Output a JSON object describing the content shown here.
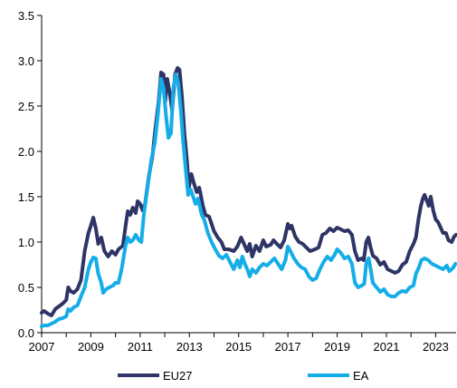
{
  "chart_data": {
    "type": "line",
    "title": "",
    "xlabel": "",
    "ylabel": "",
    "xlim": [
      2007,
      2023.83
    ],
    "ylim": [
      0,
      3.5
    ],
    "x_ticks": [
      "2007",
      "2009",
      "2011",
      "2013",
      "2015",
      "2017",
      "2019",
      "2021",
      "2023"
    ],
    "y_ticks": [
      "0.0",
      "0.5",
      "1.0",
      "1.5",
      "2.0",
      "2.5",
      "3.0",
      "3.5"
    ],
    "grid": false,
    "legend_position": "bottom",
    "series": [
      {
        "name": "EU27",
        "color": "#2E3466",
        "points": [
          [
            2007.0,
            0.22
          ],
          [
            2007.1,
            0.24
          ],
          [
            2007.25,
            0.21
          ],
          [
            2007.4,
            0.19
          ],
          [
            2007.55,
            0.26
          ],
          [
            2007.7,
            0.29
          ],
          [
            2007.85,
            0.32
          ],
          [
            2008.0,
            0.36
          ],
          [
            2008.08,
            0.5
          ],
          [
            2008.17,
            0.46
          ],
          [
            2008.3,
            0.44
          ],
          [
            2008.45,
            0.48
          ],
          [
            2008.6,
            0.58
          ],
          [
            2008.75,
            0.9
          ],
          [
            2008.9,
            1.1
          ],
          [
            2009.0,
            1.18
          ],
          [
            2009.1,
            1.27
          ],
          [
            2009.2,
            1.15
          ],
          [
            2009.3,
            0.98
          ],
          [
            2009.42,
            1.05
          ],
          [
            2009.55,
            0.9
          ],
          [
            2009.7,
            0.84
          ],
          [
            2009.85,
            0.9
          ],
          [
            2010.0,
            0.86
          ],
          [
            2010.12,
            0.92
          ],
          [
            2010.3,
            0.96
          ],
          [
            2010.42,
            1.2
          ],
          [
            2010.5,
            1.34
          ],
          [
            2010.6,
            1.3
          ],
          [
            2010.7,
            1.38
          ],
          [
            2010.82,
            1.32
          ],
          [
            2010.9,
            1.45
          ],
          [
            2011.0,
            1.42
          ],
          [
            2011.1,
            1.35
          ],
          [
            2011.2,
            1.42
          ],
          [
            2011.35,
            1.72
          ],
          [
            2011.5,
            1.95
          ],
          [
            2011.62,
            2.25
          ],
          [
            2011.75,
            2.55
          ],
          [
            2011.85,
            2.87
          ],
          [
            2011.95,
            2.85
          ],
          [
            2012.02,
            2.55
          ],
          [
            2012.1,
            2.8
          ],
          [
            2012.2,
            2.65
          ],
          [
            2012.3,
            2.45
          ],
          [
            2012.42,
            2.85
          ],
          [
            2012.52,
            2.92
          ],
          [
            2012.6,
            2.9
          ],
          [
            2012.7,
            2.6
          ],
          [
            2012.8,
            2.2
          ],
          [
            2012.9,
            1.9
          ],
          [
            2012.98,
            1.6
          ],
          [
            2013.08,
            1.75
          ],
          [
            2013.18,
            1.65
          ],
          [
            2013.3,
            1.55
          ],
          [
            2013.4,
            1.6
          ],
          [
            2013.55,
            1.4
          ],
          [
            2013.65,
            1.3
          ],
          [
            2013.8,
            1.28
          ],
          [
            2014.0,
            1.12
          ],
          [
            2014.15,
            1.05
          ],
          [
            2014.3,
            1.0
          ],
          [
            2014.42,
            0.92
          ],
          [
            2014.6,
            0.92
          ],
          [
            2014.8,
            0.9
          ],
          [
            2014.95,
            0.95
          ],
          [
            2015.1,
            1.05
          ],
          [
            2015.25,
            0.96
          ],
          [
            2015.35,
            0.9
          ],
          [
            2015.45,
            0.98
          ],
          [
            2015.55,
            0.84
          ],
          [
            2015.7,
            0.96
          ],
          [
            2015.85,
            0.9
          ],
          [
            2016.0,
            1.02
          ],
          [
            2016.12,
            0.95
          ],
          [
            2016.3,
            0.97
          ],
          [
            2016.42,
            1.02
          ],
          [
            2016.55,
            0.98
          ],
          [
            2016.7,
            0.94
          ],
          [
            2016.85,
            1.02
          ],
          [
            2017.0,
            1.2
          ],
          [
            2017.08,
            1.15
          ],
          [
            2017.15,
            1.18
          ],
          [
            2017.3,
            1.06
          ],
          [
            2017.45,
            1.0
          ],
          [
            2017.6,
            0.98
          ],
          [
            2017.75,
            0.94
          ],
          [
            2017.9,
            0.9
          ],
          [
            2018.1,
            0.92
          ],
          [
            2018.25,
            0.94
          ],
          [
            2018.4,
            1.08
          ],
          [
            2018.55,
            1.1
          ],
          [
            2018.7,
            1.15
          ],
          [
            2018.85,
            1.12
          ],
          [
            2019.0,
            1.16
          ],
          [
            2019.15,
            1.14
          ],
          [
            2019.3,
            1.12
          ],
          [
            2019.45,
            1.13
          ],
          [
            2019.6,
            1.08
          ],
          [
            2019.72,
            0.9
          ],
          [
            2019.85,
            0.8
          ],
          [
            2020.0,
            0.82
          ],
          [
            2020.08,
            0.8
          ],
          [
            2020.18,
            1.0
          ],
          [
            2020.27,
            1.05
          ],
          [
            2020.35,
            0.95
          ],
          [
            2020.45,
            0.85
          ],
          [
            2020.6,
            0.82
          ],
          [
            2020.75,
            0.75
          ],
          [
            2020.9,
            0.78
          ],
          [
            2021.05,
            0.7
          ],
          [
            2021.2,
            0.68
          ],
          [
            2021.35,
            0.66
          ],
          [
            2021.5,
            0.68
          ],
          [
            2021.65,
            0.75
          ],
          [
            2021.8,
            0.78
          ],
          [
            2021.95,
            0.9
          ],
          [
            2022.1,
            0.98
          ],
          [
            2022.2,
            1.05
          ],
          [
            2022.3,
            1.25
          ],
          [
            2022.4,
            1.4
          ],
          [
            2022.48,
            1.48
          ],
          [
            2022.55,
            1.52
          ],
          [
            2022.65,
            1.45
          ],
          [
            2022.72,
            1.4
          ],
          [
            2022.8,
            1.5
          ],
          [
            2022.9,
            1.35
          ],
          [
            2023.0,
            1.25
          ],
          [
            2023.1,
            1.22
          ],
          [
            2023.2,
            1.16
          ],
          [
            2023.3,
            1.1
          ],
          [
            2023.42,
            1.1
          ],
          [
            2023.52,
            1.02
          ],
          [
            2023.65,
            1.0
          ],
          [
            2023.75,
            1.06
          ],
          [
            2023.83,
            1.08
          ]
        ]
      },
      {
        "name": "EA",
        "color": "#15ADE8",
        "points": [
          [
            2007.0,
            0.07
          ],
          [
            2007.1,
            0.08
          ],
          [
            2007.25,
            0.08
          ],
          [
            2007.4,
            0.1
          ],
          [
            2007.55,
            0.12
          ],
          [
            2007.7,
            0.15
          ],
          [
            2007.85,
            0.16
          ],
          [
            2008.0,
            0.18
          ],
          [
            2008.08,
            0.26
          ],
          [
            2008.17,
            0.24
          ],
          [
            2008.3,
            0.28
          ],
          [
            2008.45,
            0.3
          ],
          [
            2008.6,
            0.4
          ],
          [
            2008.75,
            0.5
          ],
          [
            2008.9,
            0.7
          ],
          [
            2009.0,
            0.78
          ],
          [
            2009.1,
            0.83
          ],
          [
            2009.2,
            0.82
          ],
          [
            2009.3,
            0.65
          ],
          [
            2009.42,
            0.55
          ],
          [
            2009.5,
            0.44
          ],
          [
            2009.62,
            0.48
          ],
          [
            2009.75,
            0.5
          ],
          [
            2009.9,
            0.52
          ],
          [
            2010.0,
            0.55
          ],
          [
            2010.12,
            0.55
          ],
          [
            2010.25,
            0.7
          ],
          [
            2010.4,
            0.95
          ],
          [
            2010.5,
            1.05
          ],
          [
            2010.6,
            1.0
          ],
          [
            2010.7,
            1.02
          ],
          [
            2010.82,
            1.08
          ],
          [
            2010.95,
            1.02
          ],
          [
            2011.05,
            1.0
          ],
          [
            2011.15,
            1.3
          ],
          [
            2011.3,
            1.6
          ],
          [
            2011.45,
            1.9
          ],
          [
            2011.6,
            2.1
          ],
          [
            2011.72,
            2.4
          ],
          [
            2011.85,
            2.8
          ],
          [
            2011.95,
            2.7
          ],
          [
            2012.05,
            2.4
          ],
          [
            2012.15,
            2.15
          ],
          [
            2012.25,
            2.2
          ],
          [
            2012.35,
            2.7
          ],
          [
            2012.45,
            2.85
          ],
          [
            2012.55,
            2.75
          ],
          [
            2012.65,
            2.45
          ],
          [
            2012.75,
            2.1
          ],
          [
            2012.85,
            1.8
          ],
          [
            2012.95,
            1.52
          ],
          [
            2013.05,
            1.58
          ],
          [
            2013.15,
            1.5
          ],
          [
            2013.25,
            1.42
          ],
          [
            2013.35,
            1.48
          ],
          [
            2013.5,
            1.3
          ],
          [
            2013.6,
            1.25
          ],
          [
            2013.75,
            1.1
          ],
          [
            2013.9,
            1.0
          ],
          [
            2014.05,
            0.92
          ],
          [
            2014.2,
            0.85
          ],
          [
            2014.35,
            0.82
          ],
          [
            2014.5,
            0.86
          ],
          [
            2014.65,
            0.78
          ],
          [
            2014.8,
            0.7
          ],
          [
            2014.95,
            0.8
          ],
          [
            2015.05,
            0.72
          ],
          [
            2015.15,
            0.84
          ],
          [
            2015.25,
            0.76
          ],
          [
            2015.35,
            0.7
          ],
          [
            2015.45,
            0.62
          ],
          [
            2015.55,
            0.7
          ],
          [
            2015.7,
            0.66
          ],
          [
            2015.85,
            0.72
          ],
          [
            2016.0,
            0.76
          ],
          [
            2016.15,
            0.74
          ],
          [
            2016.3,
            0.78
          ],
          [
            2016.45,
            0.82
          ],
          [
            2016.6,
            0.76
          ],
          [
            2016.75,
            0.7
          ],
          [
            2016.9,
            0.8
          ],
          [
            2017.0,
            0.95
          ],
          [
            2017.1,
            0.9
          ],
          [
            2017.25,
            0.82
          ],
          [
            2017.4,
            0.76
          ],
          [
            2017.55,
            0.72
          ],
          [
            2017.7,
            0.7
          ],
          [
            2017.85,
            0.62
          ],
          [
            2018.0,
            0.58
          ],
          [
            2018.15,
            0.6
          ],
          [
            2018.3,
            0.7
          ],
          [
            2018.45,
            0.78
          ],
          [
            2018.6,
            0.84
          ],
          [
            2018.75,
            0.8
          ],
          [
            2018.9,
            0.86
          ],
          [
            2019.0,
            0.92
          ],
          [
            2019.15,
            0.88
          ],
          [
            2019.3,
            0.82
          ],
          [
            2019.45,
            0.84
          ],
          [
            2019.6,
            0.76
          ],
          [
            2019.72,
            0.55
          ],
          [
            2019.85,
            0.5
          ],
          [
            2020.0,
            0.52
          ],
          [
            2020.1,
            0.54
          ],
          [
            2020.18,
            0.76
          ],
          [
            2020.28,
            0.82
          ],
          [
            2020.36,
            0.7
          ],
          [
            2020.45,
            0.55
          ],
          [
            2020.6,
            0.5
          ],
          [
            2020.75,
            0.45
          ],
          [
            2020.9,
            0.48
          ],
          [
            2021.05,
            0.42
          ],
          [
            2021.2,
            0.4
          ],
          [
            2021.35,
            0.4
          ],
          [
            2021.5,
            0.44
          ],
          [
            2021.65,
            0.46
          ],
          [
            2021.8,
            0.45
          ],
          [
            2021.95,
            0.5
          ],
          [
            2022.1,
            0.52
          ],
          [
            2022.2,
            0.65
          ],
          [
            2022.32,
            0.72
          ],
          [
            2022.42,
            0.8
          ],
          [
            2022.55,
            0.82
          ],
          [
            2022.7,
            0.8
          ],
          [
            2022.85,
            0.76
          ],
          [
            2023.0,
            0.74
          ],
          [
            2023.15,
            0.72
          ],
          [
            2023.3,
            0.7
          ],
          [
            2023.45,
            0.74
          ],
          [
            2023.55,
            0.68
          ],
          [
            2023.65,
            0.7
          ],
          [
            2023.72,
            0.72
          ],
          [
            2023.8,
            0.76
          ]
        ]
      }
    ]
  }
}
